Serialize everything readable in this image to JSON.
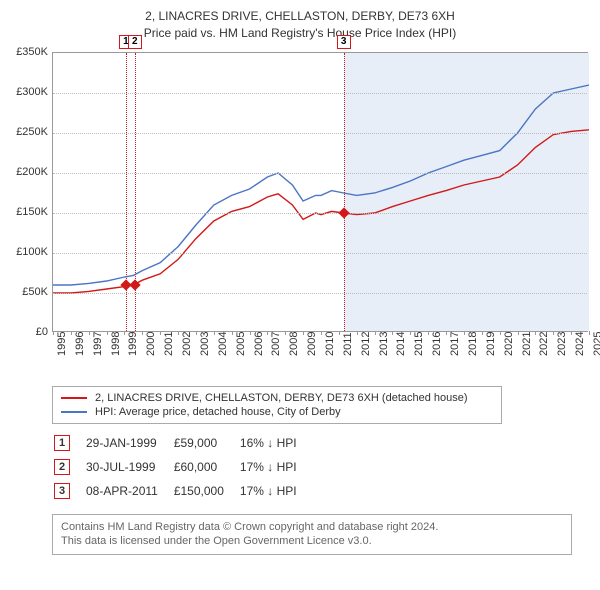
{
  "title": {
    "line1": "2, LINACRES DRIVE, CHELLASTON, DERBY, DE73 6XH",
    "line2": "Price paid vs. HM Land Registry's House Price Index (HPI)"
  },
  "chart": {
    "type": "line",
    "x_domain": [
      1995,
      2025
    ],
    "y_domain": [
      0,
      350000
    ],
    "y_ticks": [
      0,
      50000,
      100000,
      150000,
      200000,
      250000,
      300000,
      350000
    ],
    "y_tick_labels": [
      "£0",
      "£50K",
      "£100K",
      "£150K",
      "£200K",
      "£250K",
      "£300K",
      "£350K"
    ],
    "x_ticks": [
      1995,
      1996,
      1997,
      1998,
      1999,
      2000,
      2001,
      2002,
      2003,
      2004,
      2005,
      2006,
      2007,
      2008,
      2009,
      2010,
      2011,
      2012,
      2013,
      2014,
      2015,
      2016,
      2017,
      2018,
      2019,
      2020,
      2021,
      2022,
      2023,
      2024,
      2025
    ],
    "highlight_band": {
      "from": 2011.27,
      "to": 2025,
      "color": "#e8eef7"
    },
    "grid_color": "#bbbbbb",
    "background_color": "#ffffff",
    "series": [
      {
        "name": "property",
        "label": "2, LINACRES DRIVE, CHELLASTON, DERBY, DE73 6XH (detached house)",
        "color": "#d11919",
        "points": [
          [
            1995,
            50000
          ],
          [
            1996,
            50000
          ],
          [
            1997,
            52000
          ],
          [
            1998,
            55000
          ],
          [
            1999,
            58000
          ],
          [
            1999.5,
            60000
          ],
          [
            2000,
            66000
          ],
          [
            2001,
            74000
          ],
          [
            2002,
            92000
          ],
          [
            2003,
            118000
          ],
          [
            2004,
            140000
          ],
          [
            2005,
            152000
          ],
          [
            2006,
            158000
          ],
          [
            2007,
            170000
          ],
          [
            2007.6,
            174000
          ],
          [
            2008.4,
            160000
          ],
          [
            2009,
            142000
          ],
          [
            2009.7,
            150000
          ],
          [
            2010,
            148000
          ],
          [
            2010.6,
            152000
          ],
          [
            2011.27,
            150000
          ],
          [
            2012,
            148000
          ],
          [
            2013,
            150000
          ],
          [
            2014,
            158000
          ],
          [
            2015,
            165000
          ],
          [
            2016,
            172000
          ],
          [
            2017,
            178000
          ],
          [
            2018,
            185000
          ],
          [
            2019,
            190000
          ],
          [
            2020,
            195000
          ],
          [
            2021,
            210000
          ],
          [
            2022,
            232000
          ],
          [
            2023,
            248000
          ],
          [
            2024,
            252000
          ],
          [
            2025,
            254000
          ]
        ]
      },
      {
        "name": "hpi",
        "label": "HPI: Average price, detached house, City of Derby",
        "color": "#4a75c4",
        "points": [
          [
            1995,
            60000
          ],
          [
            1996,
            60000
          ],
          [
            1997,
            62000
          ],
          [
            1998,
            65000
          ],
          [
            1999,
            70000
          ],
          [
            1999.5,
            72000
          ],
          [
            2000,
            78000
          ],
          [
            2001,
            88000
          ],
          [
            2002,
            108000
          ],
          [
            2003,
            135000
          ],
          [
            2004,
            160000
          ],
          [
            2005,
            172000
          ],
          [
            2006,
            180000
          ],
          [
            2007,
            195000
          ],
          [
            2007.6,
            200000
          ],
          [
            2008.4,
            185000
          ],
          [
            2009,
            165000
          ],
          [
            2009.7,
            172000
          ],
          [
            2010,
            172000
          ],
          [
            2010.6,
            178000
          ],
          [
            2011.27,
            175000
          ],
          [
            2012,
            172000
          ],
          [
            2013,
            175000
          ],
          [
            2014,
            182000
          ],
          [
            2015,
            190000
          ],
          [
            2016,
            200000
          ],
          [
            2017,
            208000
          ],
          [
            2018,
            216000
          ],
          [
            2019,
            222000
          ],
          [
            2020,
            228000
          ],
          [
            2021,
            250000
          ],
          [
            2022,
            280000
          ],
          [
            2023,
            300000
          ],
          [
            2024,
            305000
          ],
          [
            2025,
            310000
          ]
        ]
      }
    ],
    "sale_markers": [
      {
        "num": "1",
        "x": 1999.08,
        "y": 59000,
        "color": "#d11919"
      },
      {
        "num": "2",
        "x": 1999.58,
        "y": 60000,
        "color": "#d11919"
      },
      {
        "num": "3",
        "x": 2011.27,
        "y": 150000,
        "color": "#d11919"
      }
    ]
  },
  "legend": {
    "items": [
      {
        "color": "#d11919",
        "label": "2, LINACRES DRIVE, CHELLASTON, DERBY, DE73 6XH (detached house)"
      },
      {
        "color": "#4a75c4",
        "label": "HPI: Average price, detached house, City of Derby"
      }
    ]
  },
  "sales": [
    {
      "num": "1",
      "date": "29-JAN-1999",
      "price": "£59,000",
      "delta": "16% ↓ HPI",
      "color": "#d11919"
    },
    {
      "num": "2",
      "date": "30-JUL-1999",
      "price": "£60,000",
      "delta": "17% ↓ HPI",
      "color": "#d11919"
    },
    {
      "num": "3",
      "date": "08-APR-2011",
      "price": "£150,000",
      "delta": "17% ↓ HPI",
      "color": "#d11919"
    }
  ],
  "footer": {
    "line1": "Contains HM Land Registry data © Crown copyright and database right 2024.",
    "line2": "This data is licensed under the Open Government Licence v3.0."
  }
}
